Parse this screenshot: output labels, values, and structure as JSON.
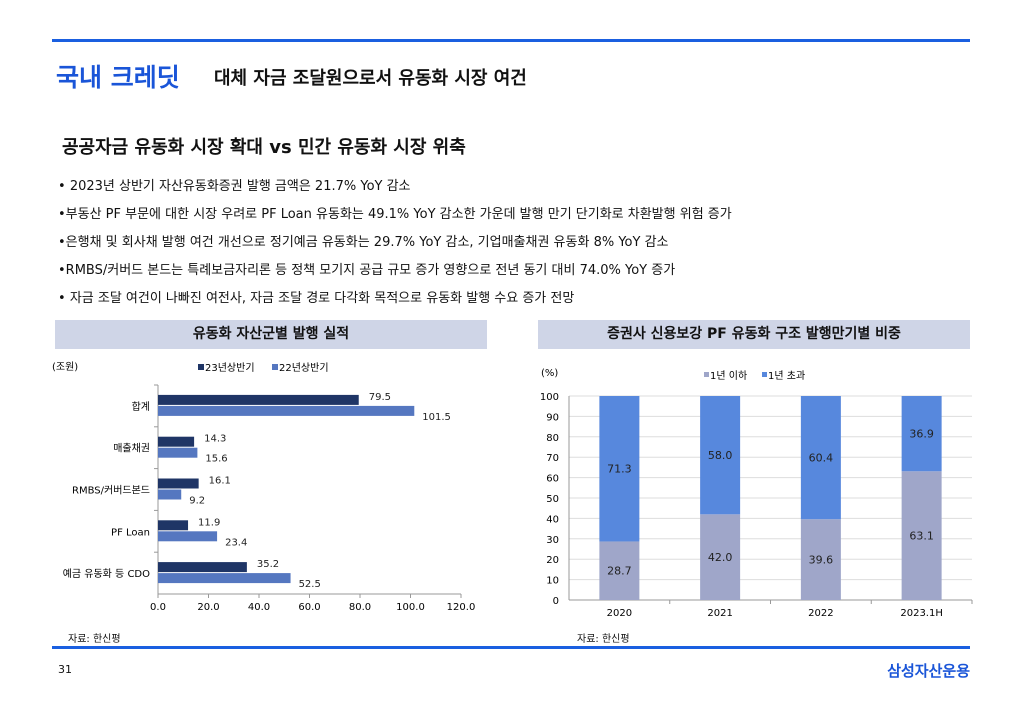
{
  "header": {
    "title_main": "국내 크레딧",
    "title_sub": "대체 자금 조달원으로서 유동화 시장 여건"
  },
  "heading": "공공자금 유동화 시장 확대 vs 민간 유동화 시장 위축",
  "bullets": [
    "2023년 상반기 자산유동화증권 발행 금액은 21.7% YoY 감소",
    "부동산 PF 부문에 대한 시장 우려로  PF Loan 유동화는 49.1% YoY 감소한 가운데 발행 만기 단기화로 차환발행 위험 증가",
    "은행채 및 회사채 발행 여건 개선으로 정기예금 유동화는 29.7% YoY 감소, 기업매출채권 유동화 8% YoY 감소",
    "RMBS/커버드 본드는 특례보금자리론 등 정책 모기지 공급 규모 증가 영향으로 전년 동기 대비 74.0% YoY 증가",
    "자금 조달 여건이  나빠진 여전사, 자금 조달 경로 다각화 목적으로 유동화 발행 수요 증가 전망"
  ],
  "left_section": {
    "title": "유동화 자산군별 발행 실적",
    "source": "자료: 한신평"
  },
  "right_section": {
    "title": "증권사 신용보강 PF 유동화 구조 발행만기별 비중",
    "source": "자료: 한신평"
  },
  "footer": {
    "page": "31",
    "logo": "삼성자산운용"
  },
  "colors": {
    "accent": "#1a5fe0",
    "s23": "#1f3566",
    "s22": "#5577c0",
    "short": "#9fa6c9",
    "long": "#5788dd"
  },
  "chart_data": [
    {
      "type": "bar",
      "orientation": "horizontal",
      "unit_label": "(조원)",
      "categories": [
        "합계",
        "매출채권",
        "RMBS/커버드본드",
        "PF Loan",
        "예금 유동화 등 CDO"
      ],
      "series": [
        {
          "name": "23년상반기",
          "values": [
            79.5,
            14.3,
            16.1,
            11.9,
            35.2
          ],
          "labels": [
            "79.5",
            "14.3",
            "16.1",
            "11.9",
            "35.2"
          ]
        },
        {
          "name": "22년상반기",
          "values": [
            101.5,
            15.6,
            9.2,
            23.4,
            52.5
          ],
          "labels": [
            "101.5",
            "15.6",
            "9.2",
            "23.4",
            "52.5"
          ]
        }
      ],
      "xlim": [
        0,
        120
      ],
      "xticks": [
        "0.0",
        "20.0",
        "40.0",
        "60.0",
        "80.0",
        "100.0",
        "120.0"
      ],
      "legend": "top",
      "grid": false
    },
    {
      "type": "bar",
      "stacked": true,
      "unit_label": "(%)",
      "categories": [
        "2020",
        "2021",
        "2022",
        "2023.1H"
      ],
      "series": [
        {
          "name": "1년 이하",
          "values": [
            28.7,
            42.0,
            39.6,
            63.1
          ],
          "labels": [
            "28.7",
            "42.0",
            "39.6",
            "63.1"
          ]
        },
        {
          "name": "1년 초과",
          "values": [
            71.3,
            58.0,
            60.4,
            36.9
          ],
          "labels": [
            "71.3",
            "58.0",
            "60.4",
            "36.9"
          ]
        }
      ],
      "ylim": [
        0,
        100
      ],
      "yticks": [
        "0",
        "10",
        "20",
        "30",
        "40",
        "50",
        "60",
        "70",
        "80",
        "90",
        "100"
      ],
      "legend": "top",
      "grid": true
    }
  ]
}
